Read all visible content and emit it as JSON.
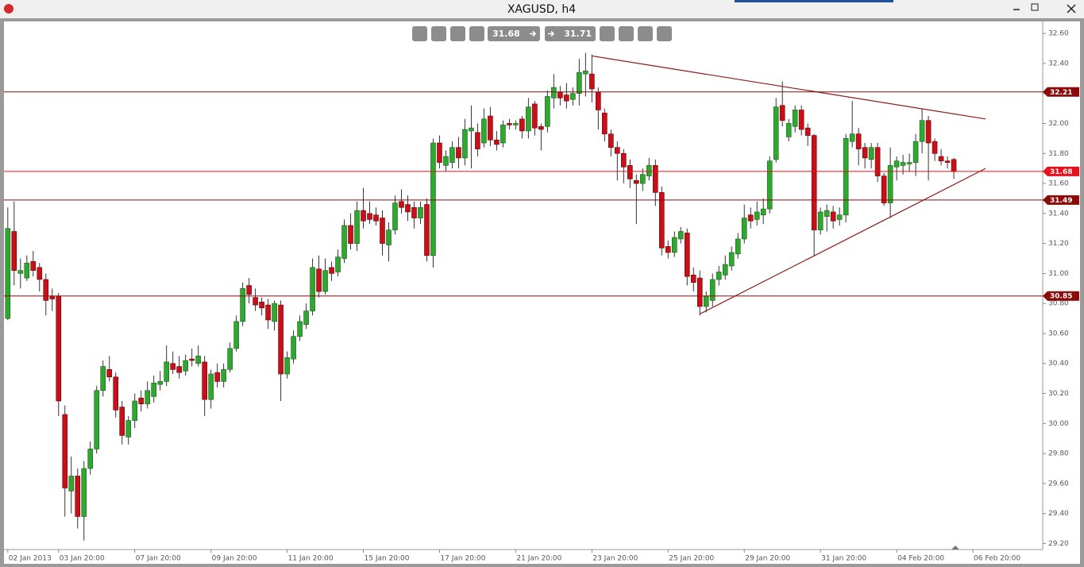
{
  "chart_data": {
    "type": "candlestick",
    "title": "XAGUSD, h4",
    "toolbar": {
      "bid": "31.68",
      "ask": "31.71"
    },
    "up_color": "#2ea82e",
    "down_color": "#c8101a",
    "open": [
      30.7,
      31.28,
      31.0,
      30.97,
      31.08,
      31.04,
      30.96,
      30.85,
      30.85,
      30.06,
      29.55,
      29.65,
      29.38,
      29.7,
      29.83,
      30.22,
      30.36,
      30.31,
      30.11,
      29.91,
      30.02,
      30.17,
      30.13,
      30.18,
      30.26,
      30.28,
      30.4,
      30.38,
      30.35,
      30.43,
      30.4,
      30.41,
      30.16,
      30.34,
      30.28,
      30.36,
      30.5,
      30.68,
      30.92,
      30.84,
      30.81,
      30.79,
      30.68,
      30.79,
      30.33,
      30.43,
      30.58,
      30.66,
      30.75,
      31.03,
      30.88,
      31.04,
      31.01,
      31.1,
      31.32,
      31.2,
      31.42,
      31.4,
      31.39,
      31.37,
      31.19,
      31.29,
      31.48,
      31.46,
      31.44,
      31.37,
      31.46,
      31.12,
      31.87,
      31.72,
      31.74,
      31.84,
      31.77,
      31.95,
      31.94,
      31.87,
      32.05,
      31.89,
      31.87,
      32.0,
      31.99,
      32.03,
      31.95,
      32.13,
      31.98,
      31.98,
      32.17,
      32.21,
      32.19,
      32.16,
      32.2,
      32.33,
      32.33,
      32.21,
      32.07,
      31.93,
      31.84,
      31.8,
      31.72,
      31.62,
      31.6,
      31.65,
      31.72,
      31.54,
      31.18,
      31.14,
      31.23,
      31.27,
      30.99,
      30.97,
      30.78,
      30.82,
      30.96,
      30.99,
      31.05,
      31.13,
      31.23,
      31.39,
      31.36,
      31.39,
      31.43,
      31.76,
      32.12,
      31.91,
      31.98,
      32.09,
      31.97,
      31.92,
      31.29,
      31.38,
      31.41,
      31.36,
      31.39,
      31.88,
      31.93,
      31.84,
      31.76,
      31.84,
      31.65,
      31.47,
      31.71,
      31.72,
      31.73,
      31.74,
      31.88,
      32.02,
      31.88,
      31.78,
      31.75,
      31.76
    ],
    "high": [
      31.44,
      31.48,
      31.1,
      31.12,
      31.15,
      31.07,
      31.0,
      30.9,
      30.87,
      30.12,
      29.78,
      29.7,
      29.75,
      29.88,
      30.25,
      30.42,
      30.45,
      30.34,
      30.15,
      30.05,
      30.2,
      30.22,
      30.28,
      30.32,
      30.35,
      30.52,
      30.48,
      30.45,
      30.46,
      30.5,
      30.52,
      30.45,
      30.36,
      30.4,
      30.4,
      30.54,
      30.72,
      30.94,
      30.97,
      30.9,
      30.84,
      30.83,
      30.82,
      30.82,
      30.48,
      30.62,
      30.72,
      30.8,
      31.1,
      31.12,
      31.1,
      31.08,
      31.16,
      31.36,
      31.4,
      31.48,
      31.57,
      31.48,
      31.44,
      31.42,
      31.34,
      31.52,
      31.56,
      31.52,
      31.48,
      31.48,
      31.5,
      31.9,
      31.92,
      31.82,
      31.88,
      31.91,
      32.03,
      32.12,
      32.0,
      32.1,
      32.11,
      31.95,
      32.02,
      32.03,
      32.02,
      32.05,
      32.17,
      32.15,
      32.0,
      32.22,
      32.33,
      32.25,
      32.27,
      32.24,
      32.43,
      32.47,
      32.46,
      32.24,
      32.1,
      31.96,
      31.88,
      31.83,
      31.76,
      31.66,
      31.7,
      31.77,
      31.76,
      31.58,
      31.22,
      31.28,
      31.31,
      31.3,
      31.04,
      31.02,
      30.88,
      31.0,
      31.05,
      31.12,
      31.18,
      31.27,
      31.46,
      31.44,
      31.48,
      31.5,
      31.78,
      32.17,
      32.28,
      32.03,
      32.12,
      32.12,
      32.0,
      31.93,
      31.44,
      31.46,
      31.45,
      31.44,
      31.93,
      32.15,
      31.97,
      31.87,
      31.87,
      31.87,
      31.67,
      31.84,
      31.78,
      31.79,
      31.8,
      31.93,
      32.1,
      32.05,
      31.9,
      31.83,
      31.78,
      31.77
    ],
    "low": [
      30.69,
      30.92,
      30.9,
      30.95,
      30.98,
      30.88,
      30.72,
      30.75,
      30.05,
      29.38,
      29.4,
      29.3,
      29.22,
      29.66,
      29.8,
      30.18,
      30.28,
      30.04,
      29.86,
      29.86,
      29.97,
      30.08,
      30.1,
      30.14,
      30.22,
      30.25,
      30.33,
      30.3,
      30.32,
      30.38,
      30.38,
      30.05,
      30.1,
      30.24,
      30.24,
      30.34,
      30.48,
      30.65,
      30.8,
      30.75,
      30.72,
      30.63,
      30.62,
      30.15,
      30.3,
      30.4,
      30.55,
      30.63,
      30.72,
      30.84,
      30.86,
      30.95,
      30.98,
      31.07,
      31.16,
      31.15,
      31.3,
      31.33,
      31.32,
      31.12,
      31.08,
      31.26,
      31.4,
      31.35,
      31.3,
      31.33,
      31.08,
      31.04,
      31.7,
      31.68,
      31.7,
      31.7,
      31.72,
      31.7,
      31.78,
      31.84,
      31.85,
      31.82,
      31.84,
      31.96,
      31.96,
      31.9,
      31.9,
      31.92,
      31.82,
      31.94,
      32.1,
      32.12,
      32.1,
      32.12,
      32.12,
      32.18,
      32.14,
      31.96,
      31.88,
      31.78,
      31.62,
      31.6,
      31.57,
      31.33,
      31.55,
      31.62,
      31.45,
      31.12,
      31.1,
      31.11,
      31.2,
      30.92,
      30.88,
      30.72,
      30.74,
      30.78,
      30.92,
      30.96,
      31.02,
      31.1,
      31.2,
      31.3,
      31.32,
      31.33,
      31.4,
      31.74,
      31.98,
      31.88,
      31.94,
      31.92,
      31.85,
      31.12,
      31.26,
      31.28,
      31.3,
      31.32,
      31.34,
      31.84,
      31.72,
      31.7,
      31.7,
      31.61,
      31.45,
      31.37,
      31.62,
      31.66,
      31.68,
      31.65,
      31.8,
      31.62,
      31.75,
      31.72,
      31.7,
      31.63
    ],
    "close": [
      31.3,
      31.02,
      31.02,
      31.07,
      31.02,
      30.96,
      30.82,
      30.83,
      30.15,
      29.57,
      29.65,
      29.38,
      29.7,
      29.83,
      30.22,
      30.38,
      30.31,
      30.09,
      29.92,
      30.02,
      30.15,
      30.13,
      30.22,
      30.27,
      30.28,
      30.41,
      30.36,
      30.34,
      30.42,
      30.42,
      30.45,
      30.16,
      30.33,
      30.28,
      30.36,
      30.5,
      30.68,
      30.9,
      30.86,
      30.79,
      30.77,
      30.69,
      30.8,
      30.33,
      30.44,
      30.58,
      30.68,
      30.75,
      31.04,
      30.88,
      31.02,
      31.0,
      31.11,
      31.32,
      31.2,
      31.42,
      31.35,
      31.36,
      31.35,
      31.2,
      31.29,
      31.47,
      31.44,
      31.41,
      31.37,
      31.44,
      31.12,
      31.87,
      31.74,
      31.78,
      31.84,
      31.77,
      31.96,
      31.97,
      31.83,
      32.03,
      31.89,
      31.86,
      31.99,
      31.99,
      32.0,
      31.95,
      32.11,
      31.97,
      31.96,
      32.18,
      32.24,
      32.17,
      32.15,
      32.2,
      32.34,
      32.35,
      32.23,
      32.09,
      31.93,
      31.84,
      31.8,
      31.71,
      31.63,
      31.6,
      31.66,
      31.72,
      31.54,
      31.17,
      31.14,
      31.24,
      31.28,
      30.98,
      30.94,
      30.78,
      30.85,
      30.96,
      31.01,
      31.06,
      31.14,
      31.23,
      31.37,
      31.35,
      31.41,
      31.43,
      31.75,
      32.11,
      32.02,
      32.0,
      32.09,
      31.96,
      31.92,
      31.29,
      31.41,
      31.42,
      31.35,
      31.39,
      31.9,
      31.93,
      31.83,
      31.77,
      31.84,
      31.65,
      31.47,
      31.72,
      31.75,
      31.74,
      31.74,
      31.88,
      32.02,
      31.87,
      31.8,
      31.75,
      31.74,
      31.68
    ],
    "xlim": [
      -0.6,
      163
    ],
    "xticks": [
      {
        "value": 0,
        "label": "02 Jan 2013"
      },
      {
        "value": 8,
        "label": "03 Jan 20:00"
      },
      {
        "value": 20,
        "label": "07 Jan 20:00"
      },
      {
        "value": 32,
        "label": "09 Jan 20:00"
      },
      {
        "value": 44,
        "label": "11 Jan 20:00"
      },
      {
        "value": 56,
        "label": "15 Jan 20:00"
      },
      {
        "value": 68,
        "label": "17 Jan 20:00"
      },
      {
        "value": 80,
        "label": "21 Jan 20:00"
      },
      {
        "value": 92,
        "label": "23 Jan 20:00"
      },
      {
        "value": 104,
        "label": "25 Jan 20:00"
      },
      {
        "value": 116,
        "label": "29 Jan 20:00"
      },
      {
        "value": 128,
        "label": "31 Jan 20:00"
      },
      {
        "value": 140,
        "label": "04 Feb 20:00"
      },
      {
        "value": 152,
        "label": "06 Feb 20:00"
      }
    ],
    "ylim": [
      29.16,
      32.68
    ],
    "yticks": [
      {
        "value": 32.6,
        "label": "32.60"
      },
      {
        "value": 32.4,
        "label": "32.40"
      },
      {
        "value": 32.2,
        "label": "32.20"
      },
      {
        "value": 32.0,
        "label": "32.00"
      },
      {
        "value": 31.8,
        "label": "31.80"
      },
      {
        "value": 31.6,
        "label": "31.60"
      },
      {
        "value": 31.4,
        "label": "31.40"
      },
      {
        "value": 31.2,
        "label": "31.20"
      },
      {
        "value": 31.0,
        "label": "31.00"
      },
      {
        "value": 30.8,
        "label": "30.80"
      },
      {
        "value": 30.6,
        "label": "30.60"
      },
      {
        "value": 30.4,
        "label": "30.40"
      },
      {
        "value": 30.2,
        "label": "30.20"
      },
      {
        "value": 30.0,
        "label": "30.00"
      },
      {
        "value": 29.8,
        "label": "29.80"
      },
      {
        "value": 29.6,
        "label": "29.60"
      },
      {
        "value": 29.4,
        "label": "29.40"
      },
      {
        "value": 29.2,
        "label": "29.20"
      }
    ],
    "levels": [
      {
        "value": 32.21,
        "color": "#8b0a0a"
      },
      {
        "value": 31.68,
        "color": "#e8101a"
      },
      {
        "value": 31.49,
        "color": "#8b0a0a"
      },
      {
        "value": 30.85,
        "color": "#8b0a0a"
      }
    ],
    "trendlines": [
      {
        "x": [
          92,
          154
        ],
        "y": [
          32.45,
          32.03
        ],
        "color": "#8b1a1a"
      },
      {
        "x": [
          109,
          154
        ],
        "y": [
          30.73,
          31.7
        ],
        "color": "#8b1a1a"
      }
    ]
  }
}
